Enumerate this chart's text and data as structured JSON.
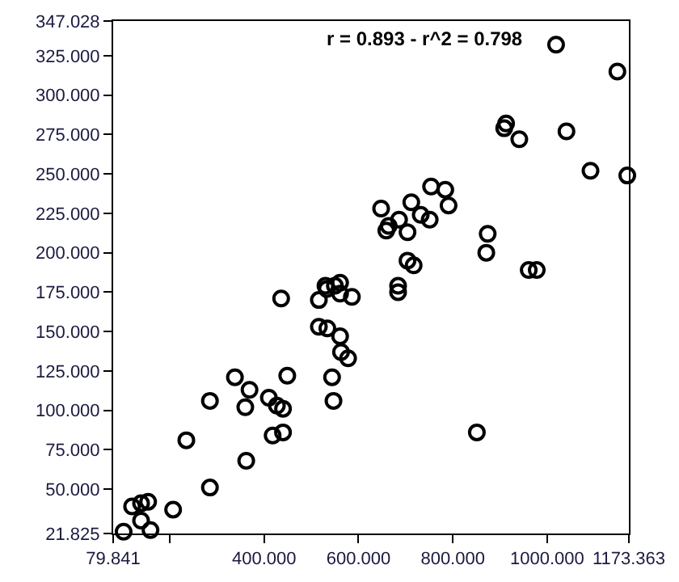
{
  "chart_data": {
    "type": "scatter",
    "marker": "circle",
    "legend": false,
    "annotations": [
      "r = 0.893 - r^2 = 0.798"
    ],
    "xlim": [
      79.841,
      1173.363
    ],
    "xticks": [
      {
        "value": 79.841,
        "label": "79.841"
      },
      {
        "value": 200,
        "label": null
      },
      {
        "value": 400,
        "label": "400.000"
      },
      {
        "value": 600,
        "label": "600.000"
      },
      {
        "value": 800,
        "label": "800.000"
      },
      {
        "value": 1000,
        "label": "1000.000"
      },
      {
        "value": 1173.363,
        "label": "1173.363"
      }
    ],
    "ylim": [
      21.825,
      347.028
    ],
    "yticks": [
      {
        "value": 21.825,
        "label": "21.825"
      },
      {
        "value": 50,
        "label": "50.000"
      },
      {
        "value": 75,
        "label": "75.000"
      },
      {
        "value": 100,
        "label": "100.000"
      },
      {
        "value": 125,
        "label": "125.000"
      },
      {
        "value": 150,
        "label": "150.000"
      },
      {
        "value": 175,
        "label": "175.000"
      },
      {
        "value": 200,
        "label": "200.000"
      },
      {
        "value": 225,
        "label": "225.000"
      },
      {
        "value": 250,
        "label": "250.000"
      },
      {
        "value": 275,
        "label": "275.000"
      },
      {
        "value": 300,
        "label": "300.000"
      },
      {
        "value": 325,
        "label": "325.000"
      },
      {
        "value": 347.028,
        "label": "347.028"
      }
    ],
    "series": [
      {
        "color": "#000000",
        "x": [
          102,
          120,
          139,
          154,
          139,
          159,
          207,
          235,
          285,
          285,
          338,
          360,
          369,
          362,
          410,
          427,
          440,
          418,
          440,
          449,
          436,
          516,
          530,
          516,
          534,
          544,
          547,
          561,
          586,
          561,
          684,
          561,
          563,
          578,
          851,
          1019,
          1149,
          913,
          909,
          941,
          1041,
          1092,
          1170,
          754,
          784,
          791,
          648,
          712,
          686,
          664,
          659,
          704,
          732,
          751,
          874,
          704,
          871,
          961,
          978,
          717,
          533,
          684,
          550
        ],
        "values": [
          23,
          39,
          41,
          42,
          30,
          24,
          37,
          81,
          106,
          51,
          121,
          102,
          113,
          68,
          108,
          103,
          101,
          84,
          86,
          122,
          171,
          170,
          179,
          153,
          152,
          121,
          106,
          181,
          172,
          174,
          175,
          147,
          137,
          133,
          86,
          332,
          315,
          282,
          279,
          272,
          277,
          252,
          249,
          242,
          240,
          230,
          228,
          232,
          221,
          217,
          214,
          213,
          224,
          221,
          212,
          195,
          200,
          189,
          189,
          192,
          177,
          179,
          179
        ]
      }
    ]
  }
}
